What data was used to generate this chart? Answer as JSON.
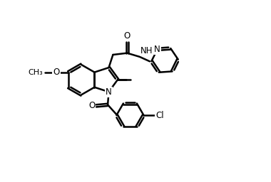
{
  "bg_color": "#ffffff",
  "line_color": "#000000",
  "line_width": 1.8,
  "font_size": 8.5,
  "fig_width": 3.8,
  "fig_height": 2.56,
  "dpi": 100,
  "xlim": [
    0,
    10
  ],
  "ylim": [
    0,
    6.73
  ]
}
